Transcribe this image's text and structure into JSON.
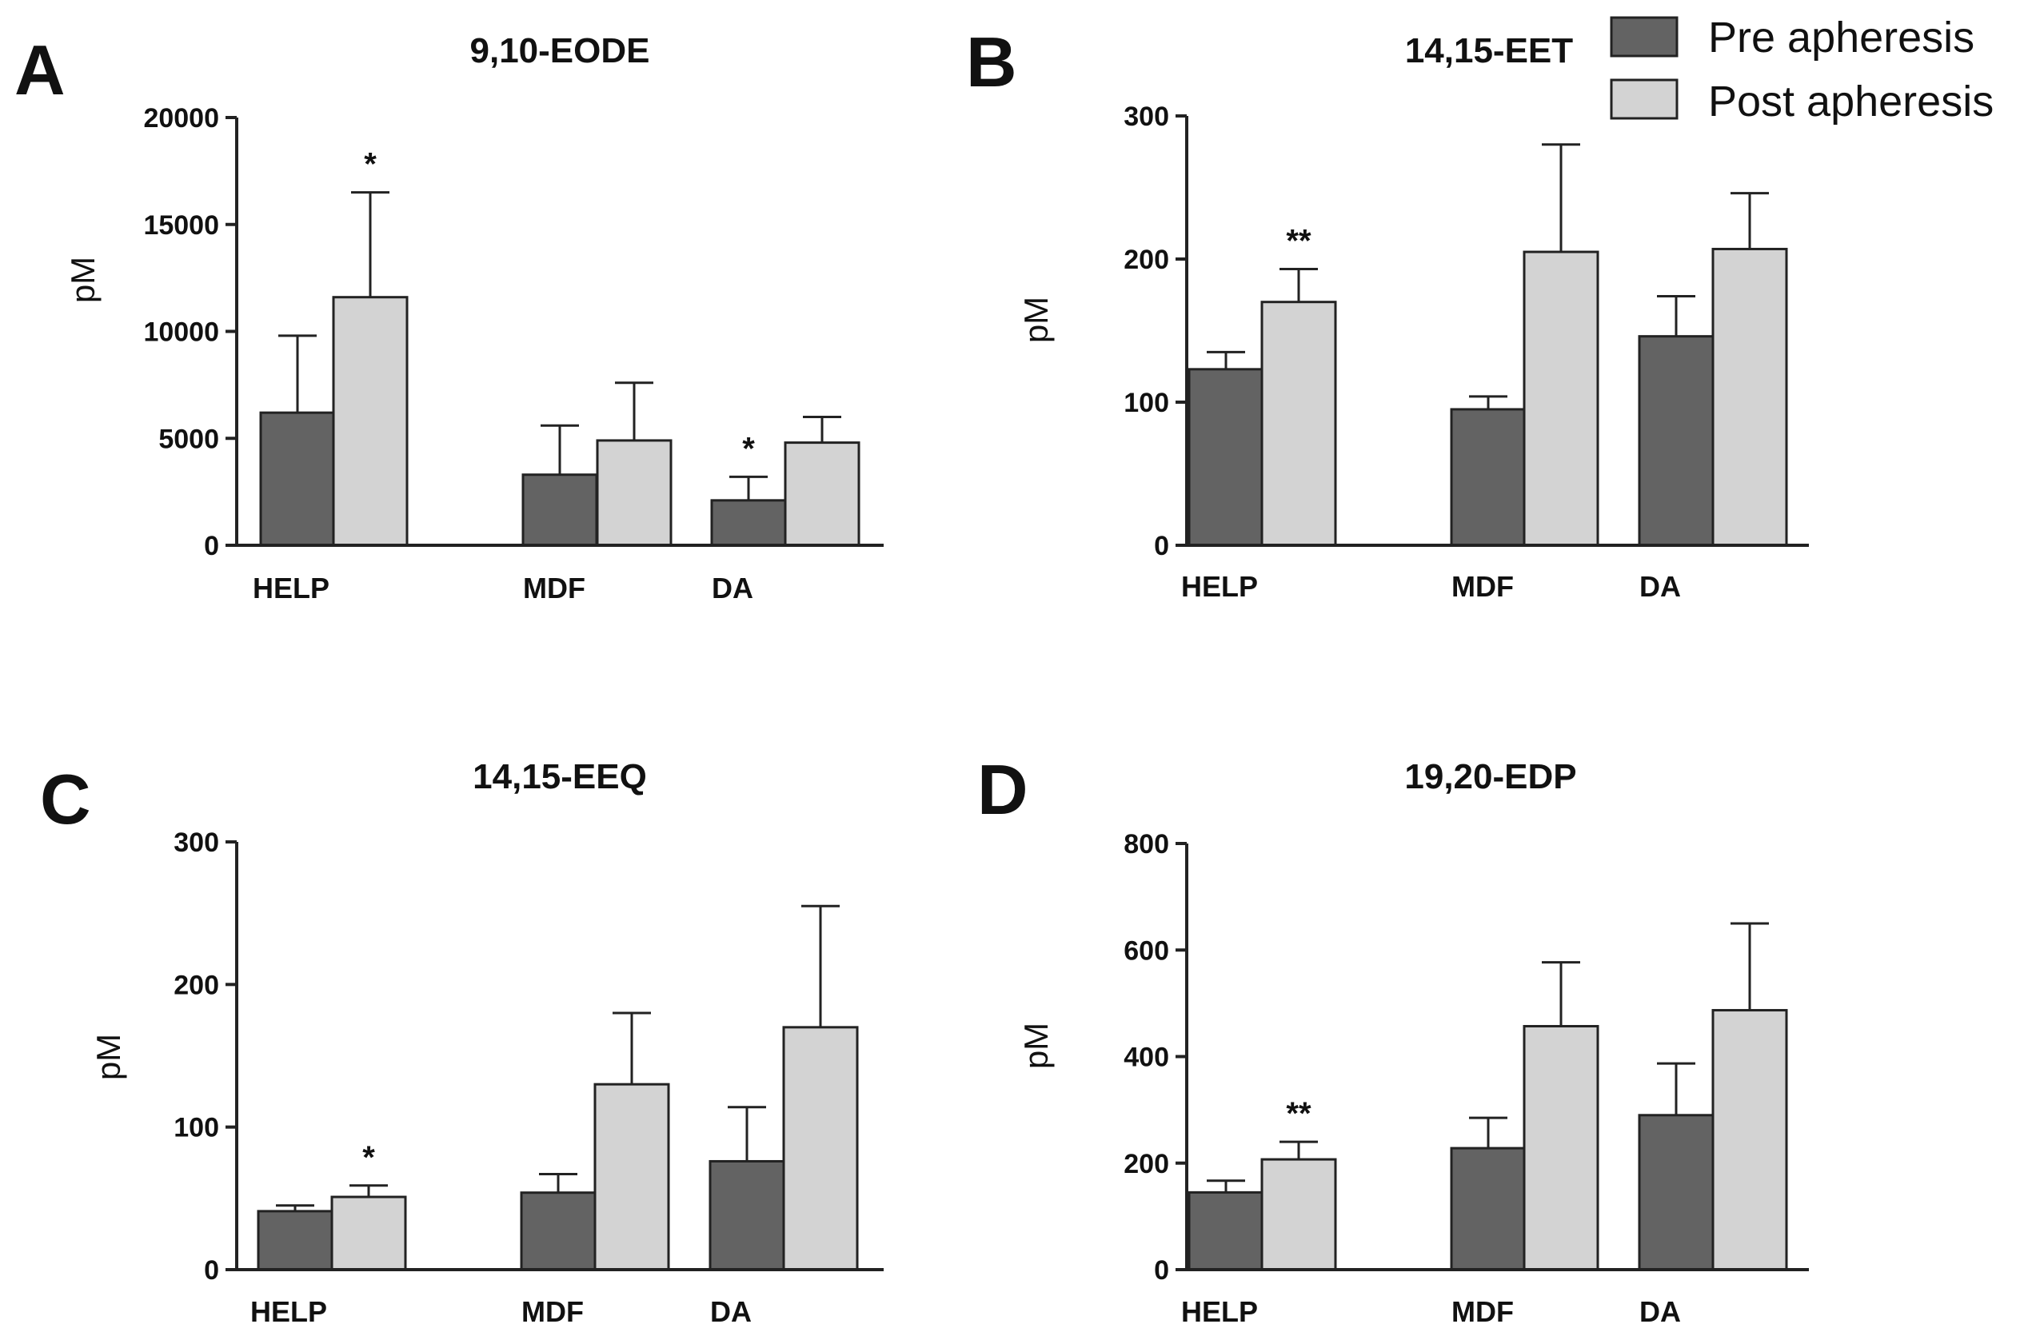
{
  "legend": {
    "items": [
      {
        "label": "Pre apheresis",
        "color": "#636363"
      },
      {
        "label": "Post apheresis",
        "color": "#d3d3d3"
      }
    ]
  },
  "chart_data": [
    {
      "type": "bar",
      "panel": "A",
      "title": "9,10-EODE",
      "ylabel": "pM",
      "xlabel": "",
      "categories": [
        "HELP",
        "MDF",
        "DA"
      ],
      "ylim": [
        0,
        20000
      ],
      "yticks": [
        0,
        5000,
        10000,
        15000,
        20000
      ],
      "series": [
        {
          "name": "Pre apheresis",
          "values": [
            6200,
            3300,
            2100
          ],
          "errors": [
            3600,
            2300,
            1100
          ]
        },
        {
          "name": "Post apheresis",
          "values": [
            11600,
            4900,
            4800
          ],
          "errors": [
            4900,
            2700,
            1200
          ]
        }
      ],
      "annotations": [
        {
          "category": "HELP",
          "series": "Post apheresis",
          "text": "*"
        },
        {
          "category": "DA",
          "series": "Pre apheresis",
          "text": "*"
        }
      ]
    },
    {
      "type": "bar",
      "panel": "B",
      "title": "14,15-EET",
      "ylabel": "pM",
      "xlabel": "",
      "categories": [
        "HELP",
        "MDF",
        "DA"
      ],
      "ylim": [
        0,
        300
      ],
      "yticks": [
        0,
        100,
        200,
        300
      ],
      "series": [
        {
          "name": "Pre apheresis",
          "values": [
            123,
            95,
            146
          ],
          "errors": [
            12,
            9,
            28
          ]
        },
        {
          "name": "Post apheresis",
          "values": [
            170,
            205,
            207
          ],
          "errors": [
            23,
            75,
            39
          ]
        }
      ],
      "annotations": [
        {
          "category": "HELP",
          "series": "Post apheresis",
          "text": "**"
        }
      ]
    },
    {
      "type": "bar",
      "panel": "C",
      "title": "14,15-EEQ",
      "ylabel": "pM",
      "xlabel": "",
      "categories": [
        "HELP",
        "MDF",
        "DA"
      ],
      "ylim": [
        0,
        300
      ],
      "yticks": [
        0,
        100,
        200,
        300
      ],
      "series": [
        {
          "name": "Pre apheresis",
          "values": [
            41,
            54,
            76
          ],
          "errors": [
            4,
            13,
            38
          ]
        },
        {
          "name": "Post apheresis",
          "values": [
            51,
            130,
            170
          ],
          "errors": [
            8,
            50,
            85
          ]
        }
      ],
      "annotations": [
        {
          "category": "HELP",
          "series": "Post apheresis",
          "text": "*"
        }
      ]
    },
    {
      "type": "bar",
      "panel": "D",
      "title": "19,20-EDP",
      "ylabel": "pM",
      "xlabel": "",
      "categories": [
        "HELP",
        "MDF",
        "DA"
      ],
      "ylim": [
        0,
        800
      ],
      "yticks": [
        0,
        200,
        400,
        600,
        800
      ],
      "series": [
        {
          "name": "Pre apheresis",
          "values": [
            145,
            228,
            290
          ],
          "errors": [
            22,
            57,
            97
          ]
        },
        {
          "name": "Post apheresis",
          "values": [
            207,
            457,
            487
          ],
          "errors": [
            33,
            120,
            163
          ]
        }
      ],
      "annotations": [
        {
          "category": "HELP",
          "series": "Post apheresis",
          "text": "**"
        }
      ]
    }
  ]
}
